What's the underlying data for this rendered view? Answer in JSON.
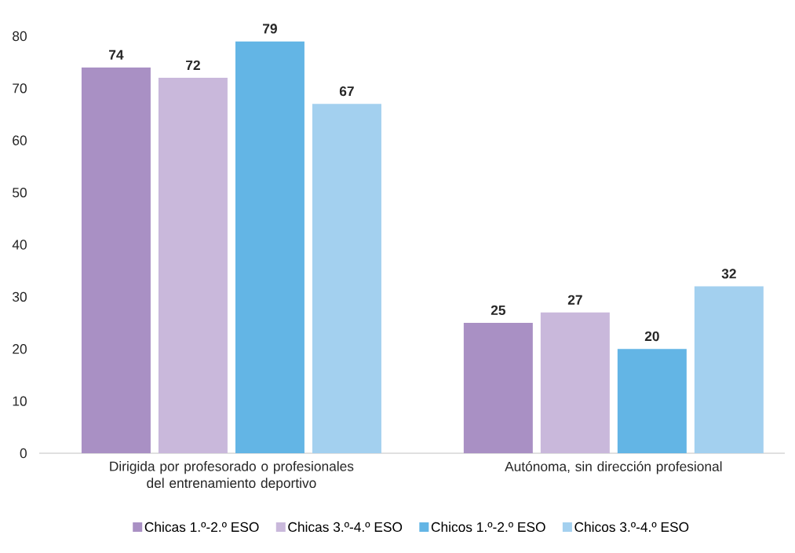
{
  "chart_data": {
    "type": "bar",
    "categories": [
      "Dirigida por profesorado o profesionales del entrenamiento deportivo",
      "Autónoma, sin dirección profesional"
    ],
    "series": [
      {
        "name": "Chicas 1.º-2.º ESO",
        "color": "#a990c4",
        "values": [
          74,
          25
        ]
      },
      {
        "name": "Chicas 3.º-4.º ESO",
        "color": "#c9b8db",
        "values": [
          72,
          27
        ]
      },
      {
        "name": "Chicos 1.º-2.º ESO",
        "color": "#63b5e5",
        "values": [
          79,
          20
        ]
      },
      {
        "name": "Chicos 3.º-4.º ESO",
        "color": "#a3d0ef",
        "values": [
          67,
          32
        ]
      }
    ],
    "ylim": [
      0,
      80
    ],
    "yticks": [
      0,
      10,
      20,
      30,
      40,
      50,
      60,
      70,
      80
    ],
    "data_labels": true,
    "grid": false,
    "legend": "bottom"
  }
}
